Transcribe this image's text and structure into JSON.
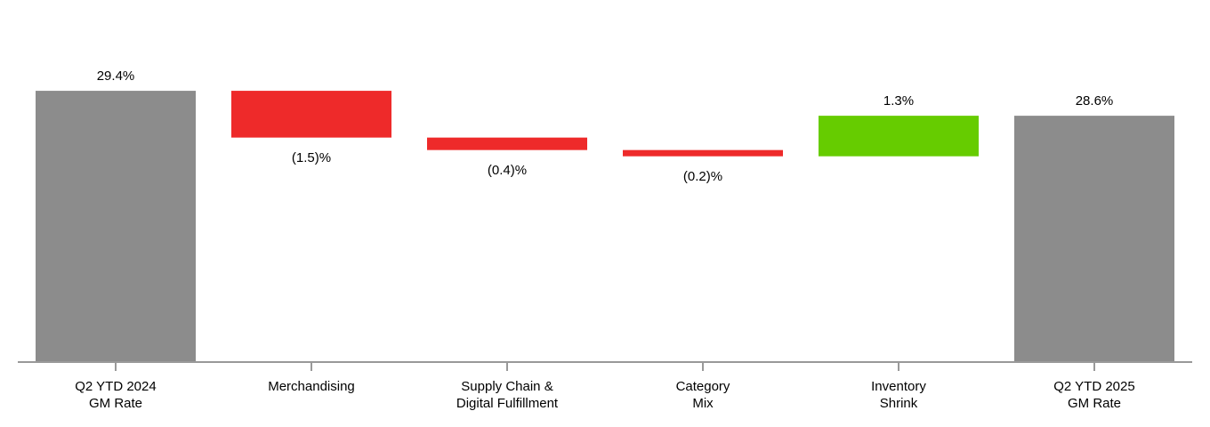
{
  "chart_data": {
    "type": "waterfall",
    "categories": [
      "Q2 YTD 2024\nGM Rate",
      "Merchandising",
      "Supply Chain &\nDigital Fulfillment",
      "Category\nMix",
      "Inventory\nShrink",
      "Q2 YTD 2025\nGM Rate"
    ],
    "values": [
      29.4,
      -1.5,
      -0.4,
      -0.2,
      1.3,
      28.6
    ],
    "value_labels": [
      "29.4%",
      "(1.5)%",
      "(0.4)%",
      "(0.2)%",
      "1.3%",
      "28.6%"
    ],
    "colors": [
      "#8c8c8c",
      "#ee2a2a",
      "#ee2a2a",
      "#ee2a2a",
      "#66cc00",
      "#8c8c8c"
    ],
    "ylim": [
      20.7,
      31
    ]
  }
}
